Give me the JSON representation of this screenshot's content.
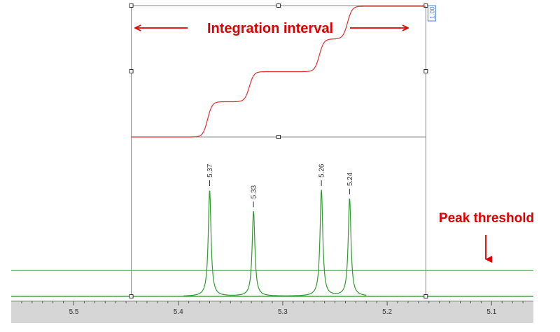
{
  "chart_data": {
    "type": "line",
    "xlabel": "",
    "ylabel": "",
    "x_axis": {
      "ticks": [
        "5.5",
        "5.4",
        "5.3",
        "5.2",
        "5.1"
      ],
      "range": [
        5.56,
        5.06
      ],
      "reversed": true
    },
    "peaks": [
      {
        "label": "5.37",
        "x": 5.37,
        "height": 1.0
      },
      {
        "label": "5.33",
        "x": 5.328,
        "height": 0.8
      },
      {
        "label": "5.26",
        "x": 5.263,
        "height": 1.0
      },
      {
        "label": "5.24",
        "x": 5.236,
        "height": 0.92
      }
    ],
    "integration": {
      "value_label": "1.00",
      "from": 5.445,
      "to": 5.163,
      "step_fractions": [
        0.0,
        0.27,
        0.5,
        0.75,
        1.0
      ]
    },
    "peak_threshold": 0.2,
    "grid": false,
    "colors": {
      "spectrum": "#2f9a2f",
      "integral": "#e03030",
      "threshold": "#3fa63f",
      "annotation": "#dd0000",
      "box": "#888888",
      "value_box": "#4a7fd4"
    }
  },
  "annotations": {
    "integration_interval": "Integration interval",
    "peak_threshold": "Peak threshold"
  }
}
